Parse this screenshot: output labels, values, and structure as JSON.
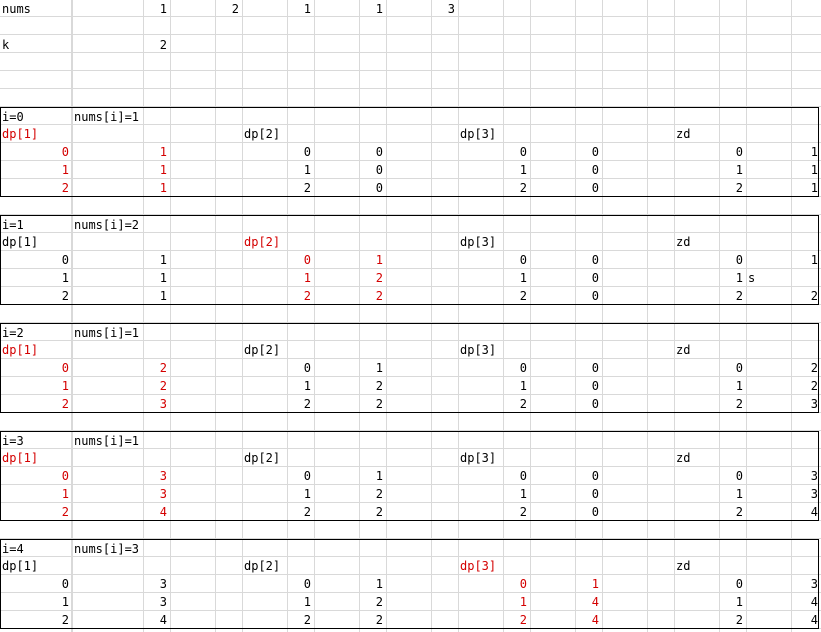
{
  "header": {
    "nums_label": "nums",
    "nums_values": [
      "1",
      "2",
      "1",
      "1",
      "3"
    ],
    "k_label": "k",
    "k_value": "2"
  },
  "blocks": [
    {
      "i_label": "i=0",
      "nums_label": "nums[i]=1",
      "headers": [
        "dp[1]",
        "dp[2]",
        "dp[3]",
        "zd"
      ],
      "highlight": "dp1",
      "rows": [
        {
          "dp1": [
            "0",
            "1"
          ],
          "dp2": [
            "0",
            "0"
          ],
          "dp3": [
            "0",
            "0"
          ],
          "zd": [
            "0",
            "1"
          ],
          "note": ""
        },
        {
          "dp1": [
            "1",
            "1"
          ],
          "dp2": [
            "1",
            "0"
          ],
          "dp3": [
            "1",
            "0"
          ],
          "zd": [
            "1",
            "1"
          ],
          "note": ""
        },
        {
          "dp1": [
            "2",
            "1"
          ],
          "dp2": [
            "2",
            "0"
          ],
          "dp3": [
            "2",
            "0"
          ],
          "zd": [
            "2",
            "1"
          ],
          "note": ""
        }
      ]
    },
    {
      "i_label": "i=1",
      "nums_label": "nums[i]=2",
      "headers": [
        "dp[1]",
        "dp[2]",
        "dp[3]",
        "zd"
      ],
      "highlight": "dp2",
      "rows": [
        {
          "dp1": [
            "0",
            "1"
          ],
          "dp2": [
            "0",
            "1"
          ],
          "dp3": [
            "0",
            "0"
          ],
          "zd": [
            "0",
            "1"
          ],
          "note": ""
        },
        {
          "dp1": [
            "1",
            "1"
          ],
          "dp2": [
            "1",
            "2"
          ],
          "dp3": [
            "1",
            "0"
          ],
          "zd": [
            "1",
            ""
          ],
          "note": "s"
        },
        {
          "dp1": [
            "2",
            "1"
          ],
          "dp2": [
            "2",
            "2"
          ],
          "dp3": [
            "2",
            "0"
          ],
          "zd": [
            "2",
            "2"
          ],
          "note": ""
        }
      ]
    },
    {
      "i_label": "i=2",
      "nums_label": "nums[i]=1",
      "headers": [
        "dp[1]",
        "dp[2]",
        "dp[3]",
        "zd"
      ],
      "highlight": "dp1",
      "rows": [
        {
          "dp1": [
            "0",
            "2"
          ],
          "dp2": [
            "0",
            "1"
          ],
          "dp3": [
            "0",
            "0"
          ],
          "zd": [
            "0",
            "2"
          ],
          "note": ""
        },
        {
          "dp1": [
            "1",
            "2"
          ],
          "dp2": [
            "1",
            "2"
          ],
          "dp3": [
            "1",
            "0"
          ],
          "zd": [
            "1",
            "2"
          ],
          "note": ""
        },
        {
          "dp1": [
            "2",
            "3"
          ],
          "dp2": [
            "2",
            "2"
          ],
          "dp3": [
            "2",
            "0"
          ],
          "zd": [
            "2",
            "3"
          ],
          "note": ""
        }
      ]
    },
    {
      "i_label": "i=3",
      "nums_label": "nums[i]=1",
      "headers": [
        "dp[1]",
        "dp[2]",
        "dp[3]",
        "zd"
      ],
      "highlight": "dp1",
      "rows": [
        {
          "dp1": [
            "0",
            "3"
          ],
          "dp2": [
            "0",
            "1"
          ],
          "dp3": [
            "0",
            "0"
          ],
          "zd": [
            "0",
            "3"
          ],
          "note": ""
        },
        {
          "dp1": [
            "1",
            "3"
          ],
          "dp2": [
            "1",
            "2"
          ],
          "dp3": [
            "1",
            "0"
          ],
          "zd": [
            "1",
            "3"
          ],
          "note": ""
        },
        {
          "dp1": [
            "2",
            "4"
          ],
          "dp2": [
            "2",
            "2"
          ],
          "dp3": [
            "2",
            "0"
          ],
          "zd": [
            "2",
            "4"
          ],
          "note": ""
        }
      ]
    },
    {
      "i_label": "i=4",
      "nums_label": "nums[i]=3",
      "headers": [
        "dp[1]",
        "dp[2]",
        "dp[3]",
        "zd"
      ],
      "highlight": "dp3",
      "rows": [
        {
          "dp1": [
            "0",
            "3"
          ],
          "dp2": [
            "0",
            "1"
          ],
          "dp3": [
            "0",
            "1"
          ],
          "zd": [
            "0",
            "3"
          ],
          "note": ""
        },
        {
          "dp1": [
            "1",
            "3"
          ],
          "dp2": [
            "1",
            "2"
          ],
          "dp3": [
            "1",
            "4"
          ],
          "zd": [
            "1",
            "4"
          ],
          "note": ""
        },
        {
          "dp1": [
            "2",
            "4"
          ],
          "dp2": [
            "2",
            "2"
          ],
          "dp3": [
            "2",
            "4"
          ],
          "zd": [
            "2",
            "4"
          ],
          "note": ""
        }
      ]
    }
  ],
  "colors": {
    "highlight": "#d40000",
    "grid": "#d9d9d9",
    "text": "#000000"
  }
}
